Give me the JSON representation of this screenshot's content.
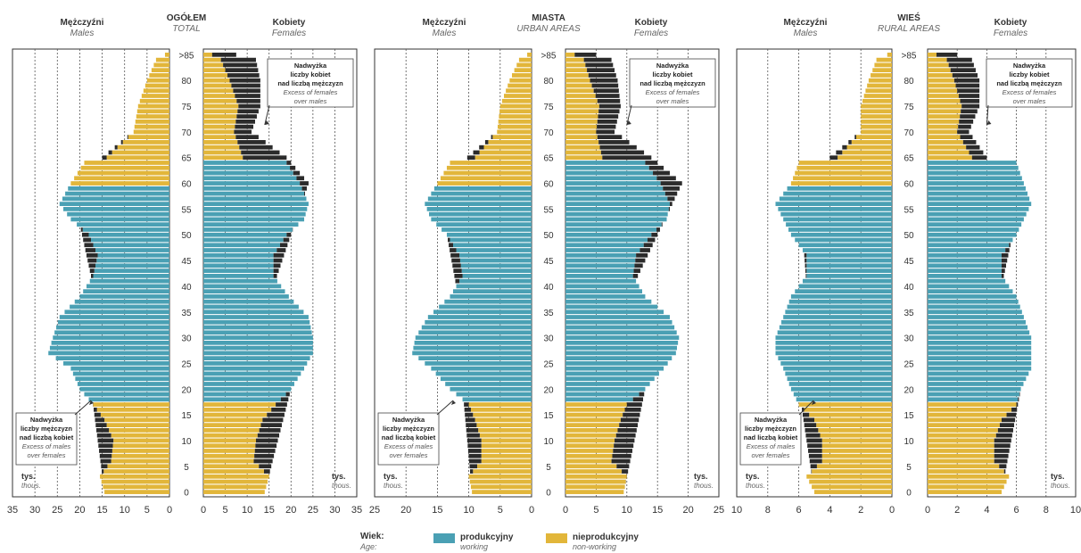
{
  "chart_data": {
    "type": "bar",
    "subtype": "population-pyramid",
    "age_labels": [
      "0",
      "5",
      "10",
      "15",
      "20",
      "25",
      "30",
      "35",
      "40",
      "45",
      "50",
      "55",
      "60",
      "65",
      "70",
      "75",
      "80",
      ">85"
    ],
    "age_groups": 86,
    "working_ages": [
      18,
      59,
      64
    ],
    "colors": {
      "working": "#4aa0b4",
      "non_working": "#e2b63a",
      "excess": "#2b2b2b"
    },
    "legend": {
      "title": "Wiek:",
      "title_en": "Age:",
      "items": [
        {
          "label": "produkcyjny",
          "label_en": "working",
          "color": "#4aa0b4"
        },
        {
          "label": "nieprodukcyjny",
          "label_en": "non-working",
          "color": "#e2b63a"
        }
      ]
    },
    "panels": [
      {
        "title": "OGÓŁEM",
        "title_en": "TOTAL",
        "males_label": "Mężczyźni",
        "males_label_en": "Males",
        "females_label": "Kobiety",
        "females_label_en": "Females",
        "unit": "tys.",
        "unit_en": "thous.",
        "xmax": 35,
        "male_ticks": [
          "35",
          "30",
          "25",
          "20",
          "15",
          "10",
          "5",
          "0"
        ],
        "female_ticks": [
          "0",
          "5",
          "10",
          "15",
          "20",
          "25",
          "30",
          "35"
        ],
        "note_male": [
          "Nadwyżka",
          "liczby mężczyzn",
          "nad liczbą kobiet",
          "Excess of males",
          "over females"
        ],
        "note_female": [
          "Nadwyżka",
          "liczby kobiet",
          "nad liczbą mężczyzn",
          "Excess of females",
          "over males"
        ],
        "male_knots": [
          [
            0,
            14.5
          ],
          [
            3,
            15.5
          ],
          [
            6,
            13
          ],
          [
            10,
            12.5
          ],
          [
            14,
            14.5
          ],
          [
            17,
            17
          ],
          [
            20,
            20
          ],
          [
            24,
            22
          ],
          [
            27,
            27
          ],
          [
            30,
            26
          ],
          [
            34,
            24.5
          ],
          [
            38,
            20
          ],
          [
            42,
            17
          ],
          [
            46,
            16
          ],
          [
            50,
            18
          ],
          [
            53,
            22
          ],
          [
            56,
            24.5
          ],
          [
            60,
            22
          ],
          [
            64,
            19
          ],
          [
            65,
            14
          ],
          [
            70,
            8
          ],
          [
            75,
            7
          ],
          [
            80,
            5
          ],
          [
            84,
            3
          ],
          [
            85,
            1
          ],
          [
            86,
            0.3
          ]
        ],
        "female_knots": [
          [
            0,
            14
          ],
          [
            3,
            15
          ],
          [
            6,
            11.5
          ],
          [
            10,
            12
          ],
          [
            14,
            13.5
          ],
          [
            17,
            16.5
          ],
          [
            20,
            20
          ],
          [
            24,
            23
          ],
          [
            27,
            25
          ],
          [
            30,
            25
          ],
          [
            34,
            24
          ],
          [
            38,
            19.5
          ],
          [
            42,
            16
          ],
          [
            46,
            16
          ],
          [
            50,
            19
          ],
          [
            53,
            23
          ],
          [
            56,
            24
          ],
          [
            60,
            22
          ],
          [
            64,
            19
          ],
          [
            65,
            9
          ],
          [
            70,
            7
          ],
          [
            75,
            8
          ],
          [
            80,
            6
          ],
          [
            84,
            4
          ],
          [
            85,
            2
          ],
          [
            86,
            0.5
          ]
        ],
        "male_open_knots": [
          [
            0,
            14.5
          ],
          [
            20,
            17.5
          ],
          [
            40,
            17
          ],
          [
            60,
            22
          ],
          [
            70,
            8
          ],
          [
            80,
            4
          ],
          [
            85,
            1
          ],
          [
            86,
            0.3
          ]
        ],
        "female_open_knots": [
          [
            0,
            14
          ],
          [
            20,
            20
          ],
          [
            40,
            16
          ],
          [
            60,
            24
          ],
          [
            65,
            19
          ],
          [
            70,
            11
          ],
          [
            75,
            13
          ],
          [
            80,
            13
          ],
          [
            84,
            12
          ],
          [
            85,
            7.5
          ],
          [
            86,
            7.5
          ]
        ]
      },
      {
        "title": "MIASTA",
        "title_en": "URBAN AREAS",
        "males_label": "Mężczyźni",
        "males_label_en": "Males",
        "females_label": "Kobiety",
        "females_label_en": "Females",
        "unit": "tys.",
        "unit_en": "thous.",
        "xmax": 25,
        "male_ticks": [
          "25",
          "20",
          "15",
          "10",
          "5",
          "0"
        ],
        "female_ticks": [
          "0",
          "5",
          "10",
          "15",
          "20",
          "25"
        ],
        "note_male": [
          "Nadwyżka",
          "liczby mężczyzn",
          "nad liczbą kobiet",
          "Excess of males",
          "over females"
        ],
        "note_female": [
          "Nadwyżka",
          "liczby kobiet",
          "nad liczbą mężczyzn",
          "Excess of females",
          "over males"
        ],
        "male_knots": [
          [
            0,
            9.5
          ],
          [
            3,
            10
          ],
          [
            6,
            8
          ],
          [
            10,
            8
          ],
          [
            14,
            9
          ],
          [
            17,
            10
          ],
          [
            20,
            13
          ],
          [
            24,
            16
          ],
          [
            27,
            19
          ],
          [
            30,
            18.5
          ],
          [
            34,
            16.5
          ],
          [
            38,
            13
          ],
          [
            42,
            11
          ],
          [
            46,
            11.5
          ],
          [
            50,
            13.5
          ],
          [
            53,
            16
          ],
          [
            56,
            17
          ],
          [
            60,
            15
          ],
          [
            64,
            13
          ],
          [
            65,
            9
          ],
          [
            70,
            5.5
          ],
          [
            75,
            5
          ],
          [
            80,
            3.5
          ],
          [
            84,
            2
          ],
          [
            85,
            0.7
          ],
          [
            86,
            0.2
          ]
        ],
        "female_knots": [
          [
            0,
            9.5
          ],
          [
            3,
            10
          ],
          [
            6,
            7.5
          ],
          [
            10,
            8
          ],
          [
            14,
            9
          ],
          [
            17,
            10
          ],
          [
            20,
            13
          ],
          [
            24,
            16
          ],
          [
            27,
            18
          ],
          [
            30,
            18.5
          ],
          [
            34,
            17
          ],
          [
            38,
            13
          ],
          [
            42,
            11
          ],
          [
            46,
            11.5
          ],
          [
            50,
            14
          ],
          [
            53,
            16.5
          ],
          [
            56,
            17
          ],
          [
            60,
            15.5
          ],
          [
            64,
            13
          ],
          [
            65,
            6
          ],
          [
            70,
            5
          ],
          [
            75,
            5.5
          ],
          [
            80,
            4
          ],
          [
            84,
            3
          ],
          [
            85,
            1.5
          ],
          [
            86,
            0.3
          ]
        ],
        "male_open_knots": [
          [
            0,
            9.5
          ],
          [
            20,
            11
          ],
          [
            40,
            12
          ],
          [
            60,
            15
          ],
          [
            70,
            5.5
          ],
          [
            80,
            3
          ],
          [
            85,
            0.7
          ],
          [
            86,
            0.2
          ]
        ],
        "female_open_knots": [
          [
            0,
            9.5
          ],
          [
            20,
            13
          ],
          [
            40,
            11
          ],
          [
            60,
            19
          ],
          [
            65,
            14
          ],
          [
            70,
            8
          ],
          [
            75,
            9
          ],
          [
            80,
            8.5
          ],
          [
            84,
            7.5
          ],
          [
            85,
            5
          ],
          [
            86,
            5
          ]
        ]
      },
      {
        "title": "WIEŚ",
        "title_en": "RURAL AREAS",
        "males_label": "Mężczyźni",
        "males_label_en": "Males",
        "females_label": "Kobiety",
        "females_label_en": "Females",
        "unit": "tys.",
        "unit_en": "thous.",
        "xmax": 10,
        "male_ticks": [
          "10",
          "8",
          "6",
          "4",
          "2",
          "0"
        ],
        "female_ticks": [
          "0",
          "2",
          "4",
          "6",
          "8",
          "10"
        ],
        "note_male": [
          "Nadwyżka",
          "liczby mężczyzn",
          "nad liczbą kobiet",
          "Excess of males",
          "over females"
        ],
        "note_female": [
          "Nadwyżka",
          "liczby kobiet",
          "nad liczbą mężczyzn",
          "Excess of females",
          "over males"
        ],
        "male_knots": [
          [
            0,
            5
          ],
          [
            3,
            5.5
          ],
          [
            6,
            4.5
          ],
          [
            10,
            4.5
          ],
          [
            14,
            5
          ],
          [
            17,
            6
          ],
          [
            20,
            6.5
          ],
          [
            24,
            7
          ],
          [
            27,
            7.5
          ],
          [
            30,
            7.5
          ],
          [
            34,
            7
          ],
          [
            38,
            6.5
          ],
          [
            42,
            5.5
          ],
          [
            46,
            5.5
          ],
          [
            50,
            6.5
          ],
          [
            53,
            7
          ],
          [
            56,
            7.5
          ],
          [
            60,
            6.5
          ],
          [
            64,
            6
          ],
          [
            65,
            3.5
          ],
          [
            70,
            2
          ],
          [
            75,
            2
          ],
          [
            80,
            1.5
          ],
          [
            84,
            1
          ],
          [
            85,
            0.3
          ],
          [
            86,
            0.1
          ]
        ],
        "female_knots": [
          [
            0,
            5
          ],
          [
            3,
            5.5
          ],
          [
            6,
            4.5
          ],
          [
            10,
            4.5
          ],
          [
            14,
            5
          ],
          [
            17,
            6
          ],
          [
            20,
            6.3
          ],
          [
            24,
            7
          ],
          [
            27,
            7
          ],
          [
            30,
            7
          ],
          [
            34,
            6.5
          ],
          [
            38,
            6
          ],
          [
            42,
            5
          ],
          [
            46,
            5
          ],
          [
            50,
            6
          ],
          [
            53,
            6.5
          ],
          [
            56,
            7
          ],
          [
            60,
            6.5
          ],
          [
            64,
            6
          ],
          [
            65,
            3
          ],
          [
            70,
            2
          ],
          [
            75,
            2.3
          ],
          [
            80,
            1.8
          ],
          [
            84,
            1.3
          ],
          [
            85,
            0.6
          ],
          [
            86,
            0.2
          ]
        ],
        "male_open_knots": [
          [
            0,
            5
          ],
          [
            20,
            6
          ],
          [
            40,
            5.5
          ],
          [
            60,
            6
          ],
          [
            70,
            2
          ],
          [
            80,
            1.5
          ],
          [
            85,
            0.3
          ],
          [
            86,
            0.1
          ]
        ],
        "female_open_knots": [
          [
            0,
            5
          ],
          [
            20,
            6.3
          ],
          [
            40,
            5
          ],
          [
            60,
            6.5
          ],
          [
            65,
            4
          ],
          [
            70,
            2.8
          ],
          [
            75,
            3.5
          ],
          [
            80,
            3.5
          ],
          [
            84,
            3
          ],
          [
            85,
            2
          ],
          [
            86,
            2
          ]
        ]
      }
    ]
  }
}
